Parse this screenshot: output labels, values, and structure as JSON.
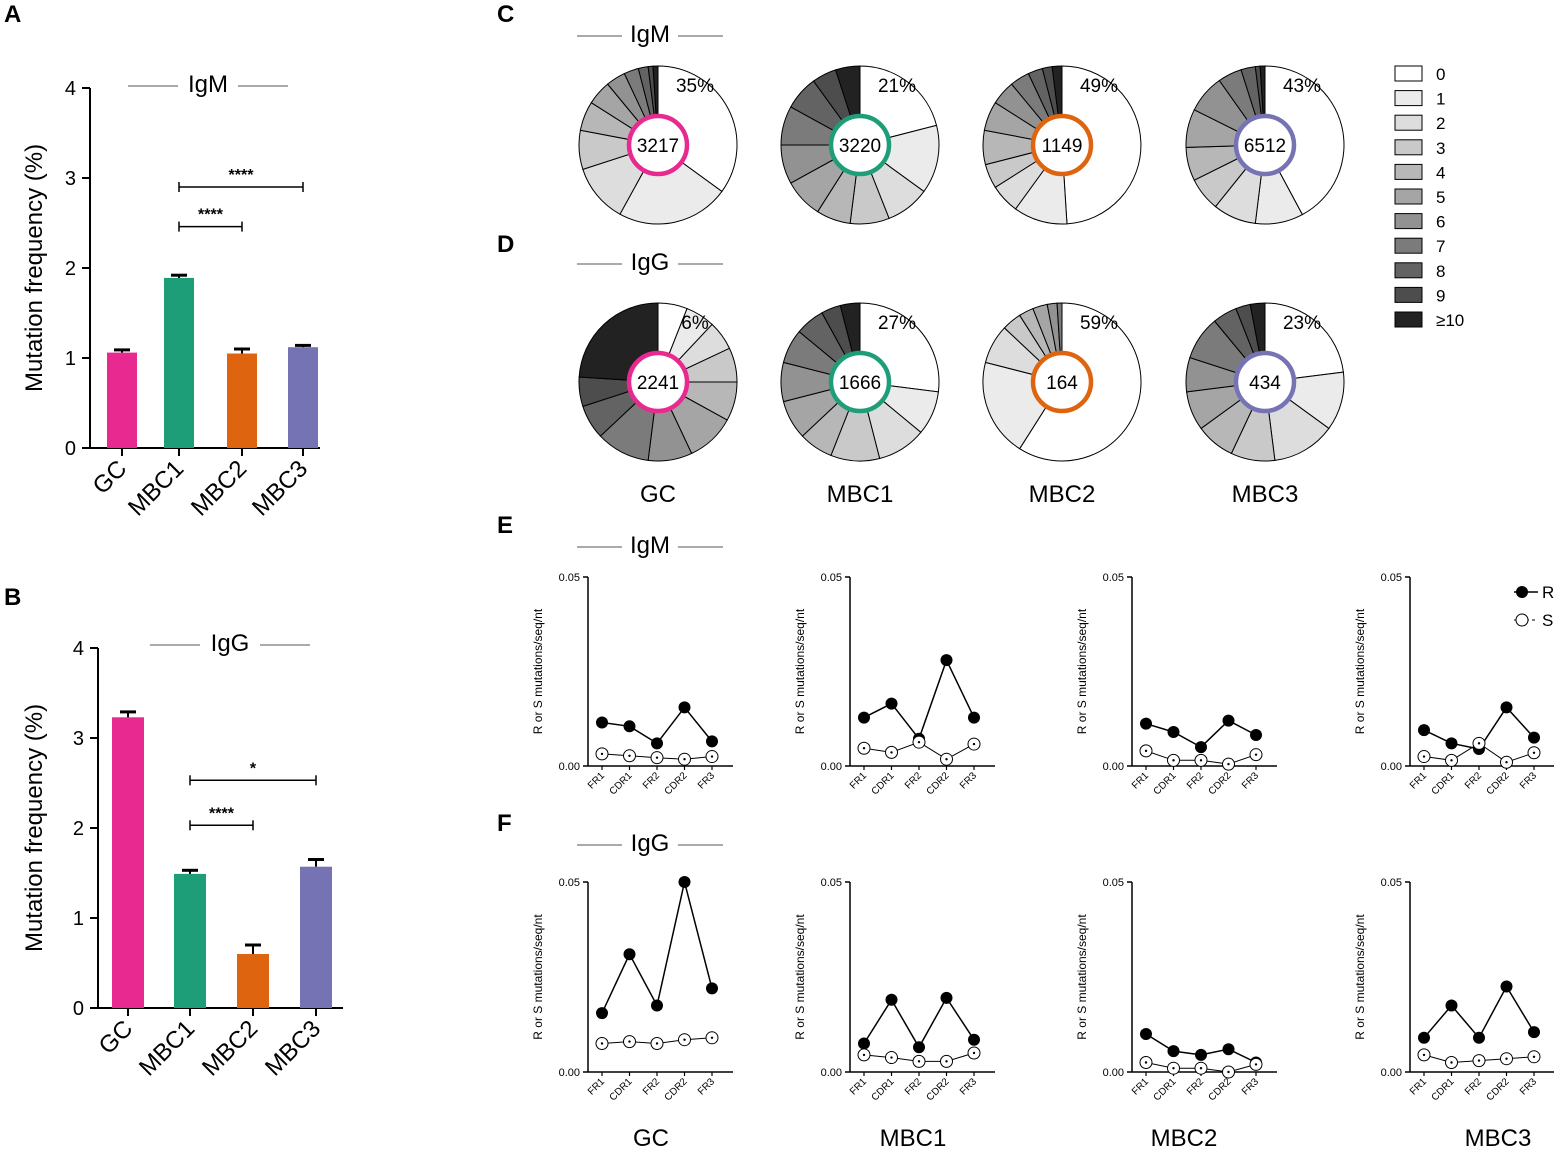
{
  "colors": {
    "GC": "#E8298F",
    "MBC1": "#1E9E78",
    "MBC2": "#DF6410",
    "MBC3": "#7673B5",
    "gray_scale": [
      "#ffffff",
      "#ebebeb",
      "#dddddd",
      "#c9c9c9",
      "#b7b7b7",
      "#a5a5a5",
      "#929292",
      "#7b7b7b",
      "#636363",
      "#4d4d4d",
      "#222222"
    ]
  },
  "panels": {
    "A": "A",
    "B": "B",
    "C": "C",
    "D": "D",
    "E": "E",
    "F": "F"
  },
  "chart_data": [
    {
      "id": "A",
      "type": "bar",
      "title": "IgM",
      "ylabel": "Mutation frequency (%)",
      "ylim": [
        0,
        4
      ],
      "yticks": [
        "0",
        "1",
        "2",
        "3",
        "4"
      ],
      "categories": [
        "GC",
        "MBC1",
        "MBC2",
        "MBC3"
      ],
      "values": [
        1.06,
        1.89,
        1.05,
        1.12
      ],
      "errors": [
        0.03,
        0.03,
        0.05,
        0.02
      ],
      "significance": [
        {
          "from": "MBC1",
          "to": "MBC3",
          "label": "****",
          "y": 2.9
        },
        {
          "from": "MBC1",
          "to": "MBC2",
          "label": "****",
          "y": 2.46
        }
      ]
    },
    {
      "id": "B",
      "type": "bar",
      "title": "IgG",
      "ylabel": "Mutation frequency (%)",
      "ylim": [
        0,
        4
      ],
      "yticks": [
        "0",
        "1",
        "2",
        "3",
        "4"
      ],
      "categories": [
        "GC",
        "MBC1",
        "MBC2",
        "MBC3"
      ],
      "values": [
        3.23,
        1.49,
        0.6,
        1.57
      ],
      "errors": [
        0.06,
        0.04,
        0.1,
        0.08
      ],
      "significance": [
        {
          "from": "MBC1",
          "to": "MBC3",
          "label": "*",
          "y": 2.53
        },
        {
          "from": "MBC1",
          "to": "MBC2",
          "label": "****",
          "y": 2.03
        }
      ]
    },
    {
      "id": "C",
      "type": "pie",
      "title": "IgM",
      "pies": [
        {
          "group": "GC",
          "total": "3217",
          "pct_label": "35%",
          "fractions": [
            0.35,
            0.23,
            0.12,
            0.08,
            0.06,
            0.05,
            0.04,
            0.03,
            0.02,
            0.01,
            0.01
          ]
        },
        {
          "group": "MBC1",
          "total": "3220",
          "pct_label": "21%",
          "fractions": [
            0.21,
            0.14,
            0.09,
            0.08,
            0.07,
            0.08,
            0.08,
            0.08,
            0.07,
            0.05,
            0.05
          ]
        },
        {
          "group": "MBC2",
          "total": "1149",
          "pct_label": "49%",
          "fractions": [
            0.49,
            0.11,
            0.06,
            0.05,
            0.07,
            0.06,
            0.05,
            0.04,
            0.03,
            0.02,
            0.02
          ]
        },
        {
          "group": "MBC3",
          "total": "6512",
          "pct_label": "43%",
          "fractions": [
            0.43,
            0.1,
            0.09,
            0.07,
            0.07,
            0.08,
            0.08,
            0.05,
            0.03,
            0.01,
            0.01
          ]
        }
      ]
    },
    {
      "id": "D",
      "type": "pie",
      "title": "IgG",
      "pies": [
        {
          "group": "GC",
          "total": "2241",
          "pct_label": "6%",
          "fractions": [
            0.06,
            0.06,
            0.06,
            0.07,
            0.08,
            0.1,
            0.09,
            0.11,
            0.07,
            0.06,
            0.24
          ]
        },
        {
          "group": "MBC1",
          "total": "1666",
          "pct_label": "27%",
          "fractions": [
            0.27,
            0.09,
            0.1,
            0.1,
            0.07,
            0.08,
            0.08,
            0.07,
            0.06,
            0.04,
            0.04
          ]
        },
        {
          "group": "MBC2",
          "total": "164",
          "pct_label": "59%",
          "fractions": [
            0.59,
            0.2,
            0.08,
            0.04,
            0.03,
            0.03,
            0.02,
            0.01,
            0.0,
            0.0,
            0.0
          ]
        },
        {
          "group": "MBC3",
          "total": "434",
          "pct_label": "23%",
          "fractions": [
            0.23,
            0.12,
            0.13,
            0.09,
            0.08,
            0.08,
            0.07,
            0.09,
            0.05,
            0.03,
            0.03
          ]
        }
      ]
    },
    {
      "id": "E",
      "type": "line",
      "title": "IgM",
      "ylabel": "R or S mutations/seq/nt",
      "ylim": [
        0,
        0.05
      ],
      "yticks": [
        "0.00",
        "0.05"
      ],
      "categories": [
        "FR1",
        "CDR1",
        "FR2",
        "CDR2",
        "FR3"
      ],
      "plots": [
        {
          "group": "GC",
          "series": [
            {
              "name": "R",
              "values": [
                0.0115,
                0.0105,
                0.006,
                0.0155,
                0.0065
              ]
            },
            {
              "name": "S",
              "values": [
                0.0032,
                0.0027,
                0.0022,
                0.0018,
                0.0025
              ]
            }
          ]
        },
        {
          "group": "MBC1",
          "series": [
            {
              "name": "R",
              "values": [
                0.0128,
                0.0165,
                0.0072,
                0.028,
                0.0128
              ]
            },
            {
              "name": "S",
              "values": [
                0.0047,
                0.0036,
                0.0063,
                0.0018,
                0.0058
              ]
            }
          ]
        },
        {
          "group": "MBC2",
          "series": [
            {
              "name": "R",
              "values": [
                0.0112,
                0.009,
                0.005,
                0.012,
                0.0082
              ]
            },
            {
              "name": "S",
              "values": [
                0.004,
                0.0015,
                0.0015,
                0.0005,
                0.003
              ]
            }
          ]
        },
        {
          "group": "MBC3",
          "series": [
            {
              "name": "R",
              "values": [
                0.0095,
                0.006,
                0.0045,
                0.0155,
                0.0075
              ]
            },
            {
              "name": "S",
              "values": [
                0.0025,
                0.0015,
                0.006,
                0.001,
                0.0035
              ]
            }
          ]
        }
      ],
      "legend": [
        "R",
        "S"
      ]
    },
    {
      "id": "F",
      "type": "line",
      "title": "IgG",
      "ylabel": "R or S mutations/seq/nt",
      "ylim": [
        0,
        0.05
      ],
      "yticks": [
        "0.00",
        "0.05"
      ],
      "categories": [
        "FR1",
        "CDR1",
        "FR2",
        "CDR2",
        "FR3"
      ],
      "plots": [
        {
          "group": "GC",
          "series": [
            {
              "name": "R",
              "values": [
                0.0155,
                0.031,
                0.0175,
                0.05,
                0.022
              ]
            },
            {
              "name": "S",
              "values": [
                0.0075,
                0.008,
                0.0075,
                0.0085,
                0.009
              ]
            }
          ]
        },
        {
          "group": "MBC1",
          "series": [
            {
              "name": "R",
              "values": [
                0.0075,
                0.019,
                0.0065,
                0.0195,
                0.0085
              ]
            },
            {
              "name": "S",
              "values": [
                0.0045,
                0.0038,
                0.0028,
                0.0028,
                0.005
              ]
            }
          ]
        },
        {
          "group": "MBC2",
          "series": [
            {
              "name": "R",
              "values": [
                0.01,
                0.0055,
                0.0045,
                0.006,
                0.0025
              ]
            },
            {
              "name": "S",
              "values": [
                0.0025,
                0.001,
                0.001,
                0.0,
                0.002
              ]
            }
          ]
        },
        {
          "group": "MBC3",
          "series": [
            {
              "name": "R",
              "values": [
                0.009,
                0.0175,
                0.009,
                0.0225,
                0.0105
              ]
            },
            {
              "name": "S",
              "values": [
                0.0045,
                0.0025,
                0.003,
                0.0035,
                0.004
              ]
            }
          ]
        }
      ]
    }
  ],
  "pie_legend": [
    "0",
    "1",
    "2",
    "3",
    "4",
    "5",
    "6",
    "7",
    "8",
    "9",
    "≥10"
  ],
  "bottom_labels": [
    "GC",
    "MBC1",
    "MBC2",
    "MBC3"
  ]
}
